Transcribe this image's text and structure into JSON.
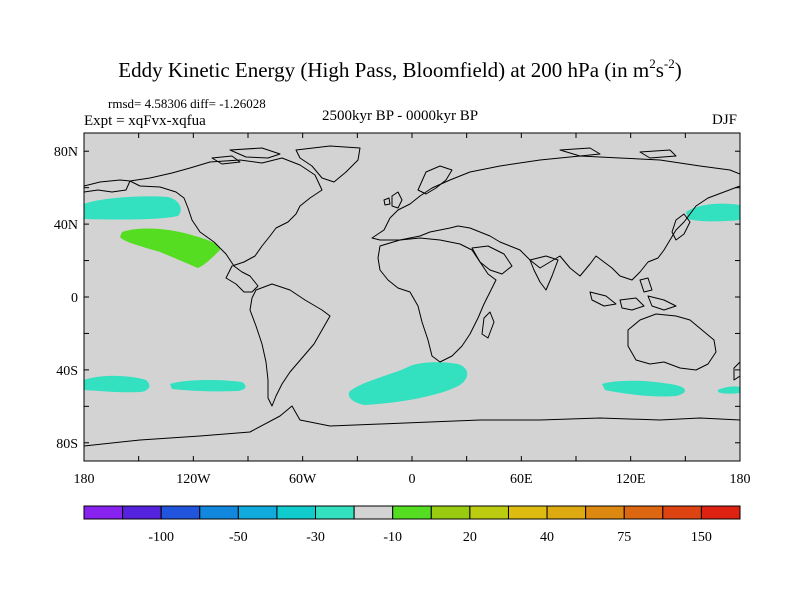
{
  "title": {
    "main": "Eddy Kinetic Energy (High Pass, Bloomfield) at 200 hPa (in m",
    "sup1": "2",
    "mid": "s",
    "sup2": "-2",
    "end": ")"
  },
  "stats": "rmsd= 4.58306 diff= -1.26028",
  "experiment": "Expt = xqFvx-xqfua",
  "period": "2500kyr BP - 0000kyr BP",
  "season": "DJF",
  "map": {
    "lat_labels": [
      "80N",
      "40N",
      "0",
      "40S",
      "80S"
    ],
    "lon_labels": [
      "180",
      "120W",
      "60W",
      "0",
      "60E",
      "120E",
      "180"
    ],
    "colors": {
      "background": "#d3d3d3",
      "coast": "#000000"
    },
    "anomaly_regions": [
      {
        "name": "north-pacific-west",
        "color": "#33e0c0"
      },
      {
        "name": "northeast-pacific",
        "color": "#55dd22"
      },
      {
        "name": "north-pacific-east",
        "color": "#33e0c0"
      },
      {
        "name": "south-pacific-1",
        "color": "#33e0c0"
      },
      {
        "name": "south-pacific-2",
        "color": "#33e0c0"
      },
      {
        "name": "south-atlantic",
        "color": "#33e0c0"
      },
      {
        "name": "south-indian",
        "color": "#33e0c0"
      },
      {
        "name": "south-tasman",
        "color": "#33e0c0"
      }
    ]
  },
  "colorbar": {
    "colors": [
      "#8822ee",
      "#5522dd",
      "#2255dd",
      "#1188dd",
      "#11aadd",
      "#11cccc",
      "#33e0c0",
      "#d3d3d3",
      "#55dd22",
      "#99cc11",
      "#bbcc11",
      "#ddbb11",
      "#ddaa11",
      "#dd8811",
      "#dd6611",
      "#dd4411",
      "#dd2211"
    ],
    "labels": [
      "-100",
      "-50",
      "-30",
      "-10",
      "20",
      "40",
      "75",
      "150"
    ]
  }
}
